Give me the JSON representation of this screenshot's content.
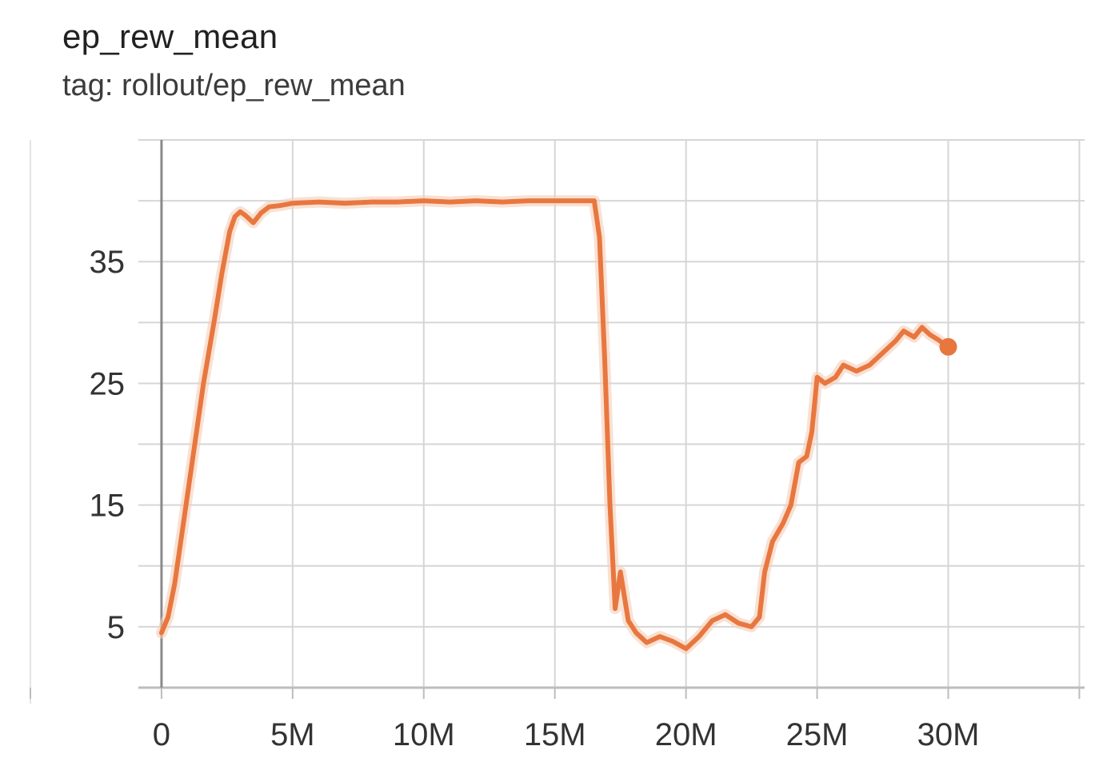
{
  "header": {
    "title": "ep_rew_mean",
    "subtitle": "tag: rollout/ep_rew_mean"
  },
  "colors": {
    "line": "#e8773f",
    "line_raw": "#f5cdb6",
    "grid": "#d6d6d6",
    "zero_axis": "#8a8a8a",
    "axis": "#bdbdbd"
  },
  "chart_data": {
    "type": "line",
    "title": "ep_rew_mean",
    "subtitle": "tag: rollout/ep_rew_mean",
    "xlabel": "",
    "ylabel": "",
    "xlim": [
      -5000000,
      35200000
    ],
    "ylim": [
      0,
      45
    ],
    "x_ticks": [
      0,
      5000000,
      10000000,
      15000000,
      20000000,
      25000000,
      30000000
    ],
    "x_tick_labels": [
      "0",
      "5M",
      "10M",
      "15M",
      "20M",
      "25M",
      "30M"
    ],
    "y_ticks": [
      5,
      15,
      25,
      35
    ],
    "y_tick_labels": [
      "5",
      "15",
      "25",
      "35"
    ],
    "grid": true,
    "legend": "none",
    "series": [
      {
        "x": [
          0,
          250000,
          500000,
          800000,
          1200000,
          1600000,
          2000000,
          2300000,
          2600000,
          2800000,
          3000000,
          3200000,
          3500000,
          3800000,
          4100000,
          4500000,
          5000000,
          6000000,
          7000000,
          8000000,
          9000000,
          10000000,
          11000000,
          12000000,
          13000000,
          14000000,
          15000000,
          16000000,
          16500000,
          16700000,
          16900000,
          17100000,
          17300000,
          17500000,
          17800000,
          18100000,
          18500000,
          19000000,
          19500000,
          20000000,
          20500000,
          21000000,
          21500000,
          22000000,
          22500000,
          22800000,
          23000000,
          23300000,
          23700000,
          24000000,
          24300000,
          24600000,
          24800000,
          25000000,
          25300000,
          25700000,
          26000000,
          26500000,
          27000000,
          27500000,
          28000000,
          28300000,
          28700000,
          29000000,
          29300000,
          29600000,
          30000000
        ],
        "y": [
          4.5,
          5.8,
          8.5,
          13,
          19,
          25,
          30,
          34,
          37.5,
          38.7,
          39.1,
          38.8,
          38.2,
          39.0,
          39.5,
          39.6,
          39.8,
          39.9,
          39.8,
          39.9,
          39.9,
          40.0,
          39.9,
          40.0,
          39.9,
          40.0,
          40.0,
          40.0,
          40.0,
          37,
          27,
          15,
          6.5,
          9.5,
          5.5,
          4.5,
          3.7,
          4.2,
          3.8,
          3.2,
          4.2,
          5.5,
          6.0,
          5.3,
          5.0,
          5.8,
          9.5,
          12.0,
          13.5,
          15.0,
          18.5,
          19.0,
          21.0,
          25.5,
          25.0,
          25.5,
          26.5,
          26.0,
          26.5,
          27.5,
          28.5,
          29.3,
          28.8,
          29.6,
          29.0,
          28.6,
          28.0
        ]
      }
    ]
  }
}
